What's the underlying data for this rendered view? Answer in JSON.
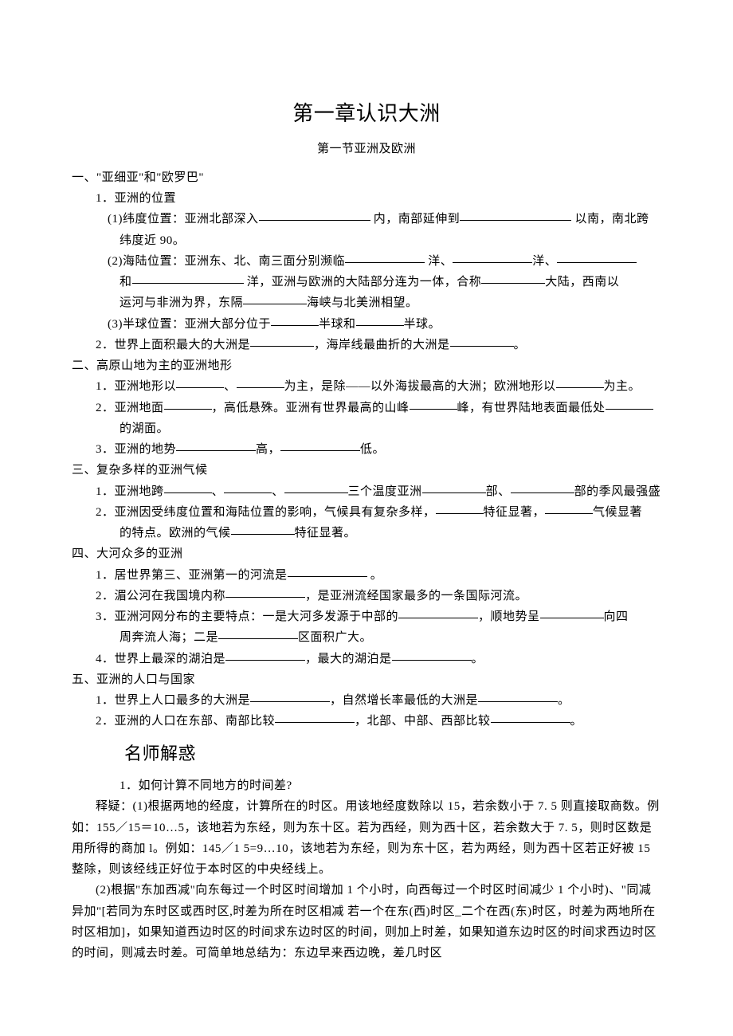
{
  "title": "第一章认识大洲",
  "subtitle": "第一节亚洲及欧洲",
  "s1": {
    "head": "一、\"亚细亚\"和\"欧罗巴\"",
    "i1": "1．亚洲的位置",
    "l1a": "(1)纬度位置：亚洲北部深入",
    "l1b": " 内，南部延伸到",
    "l1c": " 以南，南北跨",
    "l1d": "纬度近 90。",
    "l2a": "(2)海陆位置：亚洲东、北、南三面分别濒临",
    "l2b": " 洋、",
    "l2c": "洋、",
    "l2d": "和",
    "l2e": " 洋，亚洲与欧洲的大陆部分连为一体，合称",
    "l2f": "大陆，西南以",
    "l2g": "运河与非洲为界，东隔",
    "l2h": "海峡与北美洲相望。",
    "l3a": "(3)半球位置：亚洲大部分位于",
    "l3b": "半球和",
    "l3c": "半球。",
    "i2a": "2．世界上面积最大的大洲是",
    "i2b": "，海岸线最曲折的大洲是",
    "i2c": "。"
  },
  "s2": {
    "head": "二、高原山地为主的亚洲地形",
    "i1a": "1．亚洲地形以",
    "i1b": "、",
    "i1c": "为主，是除——以外海拔最高的大洲；欧洲地形以",
    "i1d": "为主。",
    "i2a": "2．亚洲地面",
    "i2b": "，高低悬殊。亚洲有世界最高的山峰",
    "i2c": "峰，有世界陆地表面最低处",
    "i2d": "的湖面。",
    "i3a": "3．亚洲的地势",
    "i3b": "高，",
    "i3c": "低。"
  },
  "s3": {
    "head": "三、复杂多样的亚洲气候",
    "i1a": "1．亚洲地跨",
    "i1b": "、",
    "i1c": "、",
    "i1d": "三个温度亚洲",
    "i1e": "部、",
    "i1f": "部的季风最强盛",
    "i2a": "2．亚洲因受纬度位置和海陆位置的影响，气候具有复杂多样，",
    "i2b": "特征显著，",
    "i2c": "气候显著",
    "i2d": "的特点。欧洲的气候",
    "i2e": "特征显著。"
  },
  "s4": {
    "head": "四、大河众多的亚洲",
    "i1a": "1．居世界第三、亚洲第一的河流是",
    "i1b": " 。",
    "i2a": "2．湄公河在我国境内称",
    "i2b": "，是亚洲流经国家最多的一条国际河流。",
    "i3a": "3．亚洲河网分布的主要特点：一是大河多发源于中部的",
    "i3b": "，顺地势呈",
    "i3c": "向四",
    "i3d": "周奔流人海；二是",
    "i3e": "区面积广大。",
    "i4a": "4．世界上最深的湖泊是",
    "i4b": "，最大的湖泊是",
    "i4c": "。"
  },
  "s5": {
    "head": "五、亚洲的人口与国家",
    "i1a": "1．世界上人口最多的大洲是",
    "i1b": "，自然增长率最低的大洲是",
    "i1c": "。",
    "i2a": "2．亚洲的人口在东部、南部比较",
    "i2b": "，北部、中部、西部比较",
    "i2c": "。"
  },
  "explain": {
    "head": "名师解惑",
    "q1": "1．如何计算不同地方的时间差?",
    "p1": "释疑：(1)根据两地的经度，计算所在的时区。用该地经度数除以 15，若余数小于 7. 5 则直接取商数。例如：155／15＝10…5，该地若为东经，则为东十区。若为西经，则为西十区，若余数大于 7. 5，则时区数是用所得的商加 l。例如：145／1 5=9…10，该地若为东经，则为东十区，若为两经，则为西十区若正好被 15 整除，则该经线正好位于本时区的中央经线上。",
    "p2": "(2)根据\"东加西减\"向东每过一个时区时间增加 1 个小时，向西每过一个时区时间减少 1 个小时)、\"同减异加\"[若同为东时区或西时区,时差为所在时区相减 若一个在东(西)时区_二个在西(东)时区，时差为两地所在时区相加]，如果知道西边时区的时间求东边时区的时间，则加上时差，如果知道东边时区的时间求西边时区的时间，则减去时差。可简单地总结为：东边早来西边晚，差几时区"
  }
}
